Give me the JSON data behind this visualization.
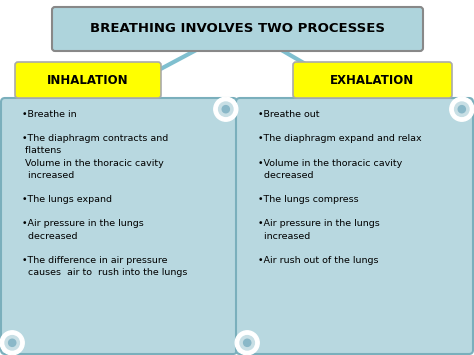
{
  "title": "BREATHING INVOLVES TWO PROCESSES",
  "title_box_color": "#aed4dc",
  "title_box_edge": "#888888",
  "title_text_color": "#000000",
  "title_fontsize": 9.5,
  "label_left": "INHALATION",
  "label_right": "EXHALATION",
  "label_box_color": "#ffff00",
  "label_text_color": "#000000",
  "label_fontsize": 8.5,
  "scroll_bg_color": "#b8d8e0",
  "scroll_edge_color": "#7aafbc",
  "curl_outer_color": "#c8dfe5",
  "curl_inner_color": "#8ab8c8",
  "arrow_color": "#7fbfcf",
  "inhalation_lines": [
    "•Breathe in",
    "",
    "•The diaphragm contracts and",
    " flattens",
    " Volume in the thoracic cavity",
    "  increased",
    "",
    "•The lungs expand",
    "",
    "•Air pressure in the lungs",
    "  decreased",
    "",
    "•The difference in air pressure",
    "  causes  air to  rush into the lungs"
  ],
  "exhalation_lines": [
    "•Breathe out",
    "",
    "•The diaphragm expand and relax",
    "",
    "•Volume in the thoracic cavity",
    "  decreased",
    "",
    "•The lungs compress",
    "",
    "•Air pressure in the lungs",
    "  increased",
    "",
    "•Air rush out of the lungs"
  ],
  "content_fontsize": 6.8,
  "background_color": "#ffffff"
}
